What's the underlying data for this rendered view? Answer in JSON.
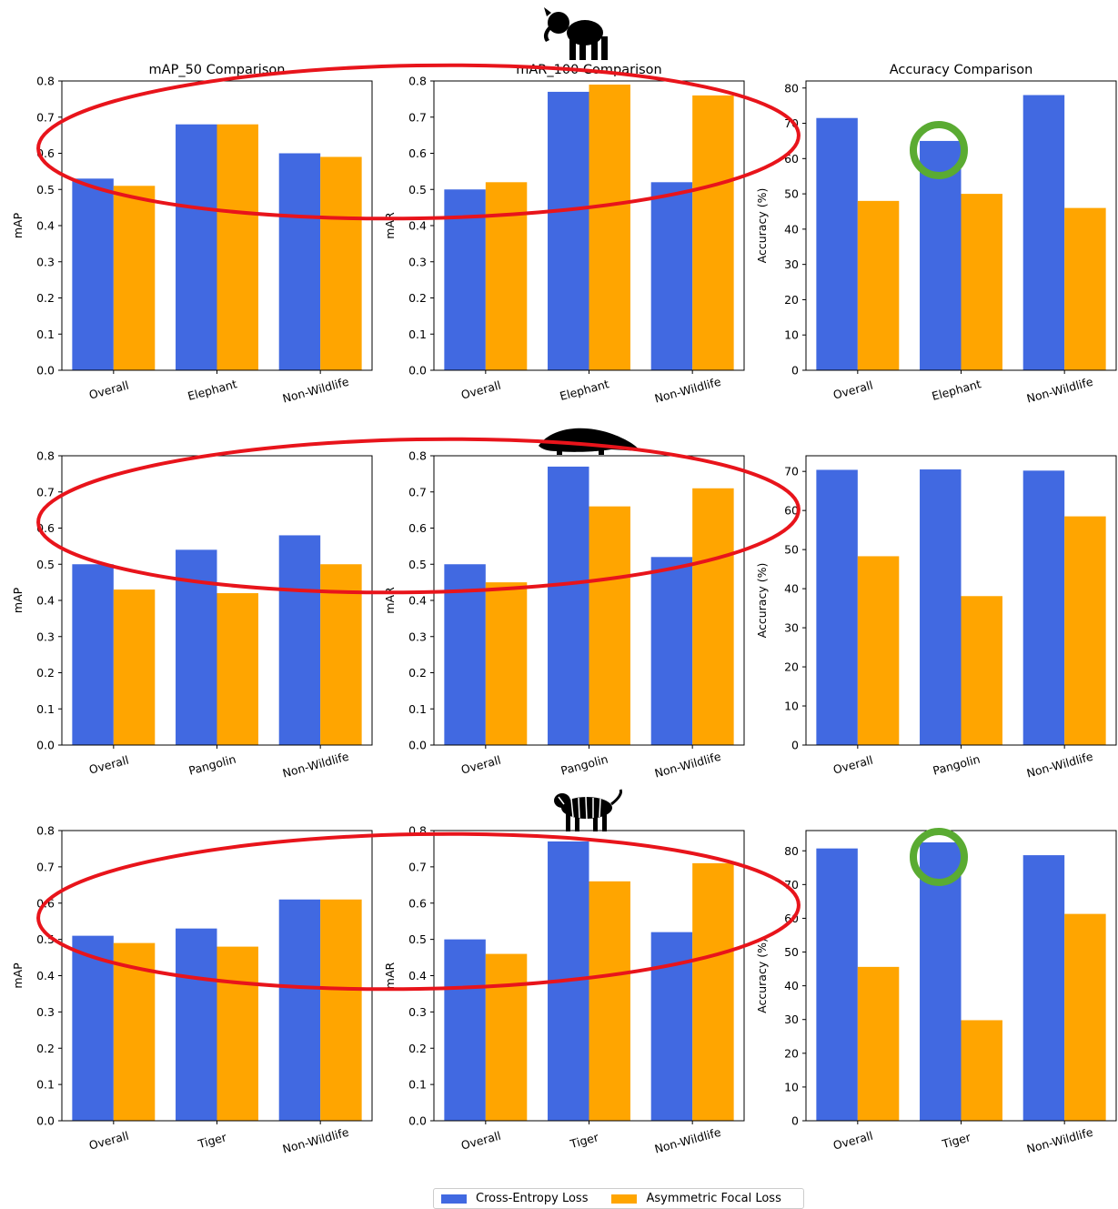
{
  "colors": {
    "series_a": "#4169e1",
    "series_b": "#ffa500",
    "highlight_ellipse": "#e8141b",
    "highlight_circle": "#5aab32"
  },
  "legend": [
    {
      "name": "Cross-Entropy Loss",
      "color": "#4169e1"
    },
    {
      "name": "Asymmetric Focal Loss",
      "color": "#ffa500"
    }
  ],
  "row_icons": [
    "elephant-silhouette-icon",
    "pangolin-silhouette-icon",
    "tiger-icon"
  ],
  "chart_data": [
    {
      "type": "bar",
      "title": "mAP_50 Comparison",
      "xlabel": "",
      "ylabel": "mAP",
      "ylim": [
        0,
        0.8
      ],
      "yticks": [
        "0.0",
        "0.1",
        "0.2",
        "0.3",
        "0.4",
        "0.5",
        "0.6",
        "0.7",
        "0.8"
      ],
      "categories": [
        "Overall",
        "Elephant",
        "Non-Wildlife"
      ],
      "series": [
        {
          "name": "Cross-Entropy Loss",
          "values": [
            0.53,
            0.68,
            0.6
          ]
        },
        {
          "name": "Asymmetric Focal Loss",
          "values": [
            0.51,
            0.68,
            0.59
          ]
        }
      ]
    },
    {
      "type": "bar",
      "title": "mAR_100 Comparison",
      "xlabel": "",
      "ylabel": "mAR",
      "ylim": [
        0,
        0.8
      ],
      "yticks": [
        "0.0",
        "0.1",
        "0.2",
        "0.3",
        "0.4",
        "0.5",
        "0.6",
        "0.7",
        "0.8"
      ],
      "categories": [
        "Overall",
        "Elephant",
        "Non-Wildlife"
      ],
      "series": [
        {
          "name": "Cross-Entropy Loss",
          "values": [
            0.5,
            0.77,
            0.52
          ]
        },
        {
          "name": "Asymmetric Focal Loss",
          "values": [
            0.52,
            0.79,
            0.76
          ]
        }
      ]
    },
    {
      "type": "bar",
      "title": "Accuracy Comparison",
      "xlabel": "",
      "ylabel": "Accuracy (%)",
      "ylim": [
        0,
        82
      ],
      "yticks": [
        "0",
        "10",
        "20",
        "30",
        "40",
        "50",
        "60",
        "70",
        "80"
      ],
      "categories": [
        "Overall",
        "Elephant",
        "Non-Wildlife"
      ],
      "series": [
        {
          "name": "Cross-Entropy Loss",
          "values": [
            71.5,
            65,
            78
          ]
        },
        {
          "name": "Asymmetric Focal Loss",
          "values": [
            48,
            50,
            46
          ]
        }
      ]
    },
    {
      "type": "bar",
      "title": "",
      "xlabel": "",
      "ylabel": "mAP",
      "ylim": [
        0,
        0.8
      ],
      "yticks": [
        "0.0",
        "0.1",
        "0.2",
        "0.3",
        "0.4",
        "0.5",
        "0.6",
        "0.7",
        "0.8"
      ],
      "categories": [
        "Overall",
        "Pangolin",
        "Non-Wildlife"
      ],
      "series": [
        {
          "name": "Cross-Entropy Loss",
          "values": [
            0.5,
            0.54,
            0.58
          ]
        },
        {
          "name": "Asymmetric Focal Loss",
          "values": [
            0.43,
            0.42,
            0.5
          ]
        }
      ]
    },
    {
      "type": "bar",
      "title": "",
      "xlabel": "",
      "ylabel": "mAR",
      "ylim": [
        0,
        0.8
      ],
      "yticks": [
        "0.0",
        "0.1",
        "0.2",
        "0.3",
        "0.4",
        "0.5",
        "0.6",
        "0.7",
        "0.8"
      ],
      "categories": [
        "Overall",
        "Pangolin",
        "Non-Wildlife"
      ],
      "series": [
        {
          "name": "Cross-Entropy Loss",
          "values": [
            0.5,
            0.77,
            0.52
          ]
        },
        {
          "name": "Asymmetric Focal Loss",
          "values": [
            0.45,
            0.66,
            0.71
          ]
        }
      ]
    },
    {
      "type": "bar",
      "title": "",
      "xlabel": "",
      "ylabel": "Accuracy (%)",
      "ylim": [
        0,
        74
      ],
      "yticks": [
        "0",
        "10",
        "20",
        "30",
        "40",
        "50",
        "60",
        "70"
      ],
      "categories": [
        "Overall",
        "Pangolin",
        "Non-Wildlife"
      ],
      "series": [
        {
          "name": "Cross-Entropy Loss",
          "values": [
            70.4,
            70.5,
            70.2
          ]
        },
        {
          "name": "Asymmetric Focal Loss",
          "values": [
            48.3,
            38.1,
            58.5
          ]
        }
      ]
    },
    {
      "type": "bar",
      "title": "",
      "xlabel": "",
      "ylabel": "mAP",
      "ylim": [
        0,
        0.8
      ],
      "yticks": [
        "0.0",
        "0.1",
        "0.2",
        "0.3",
        "0.4",
        "0.5",
        "0.6",
        "0.7",
        "0.8"
      ],
      "categories": [
        "Overall",
        "Tiger",
        "Non-Wildlife"
      ],
      "series": [
        {
          "name": "Cross-Entropy Loss",
          "values": [
            0.51,
            0.53,
            0.61
          ]
        },
        {
          "name": "Asymmetric Focal Loss",
          "values": [
            0.49,
            0.48,
            0.61
          ]
        }
      ]
    },
    {
      "type": "bar",
      "title": "",
      "xlabel": "",
      "ylabel": "mAR",
      "ylim": [
        0,
        0.8
      ],
      "yticks": [
        "0.0",
        "0.1",
        "0.2",
        "0.3",
        "0.4",
        "0.5",
        "0.6",
        "0.7",
        "0.8"
      ],
      "categories": [
        "Overall",
        "Tiger",
        "Non-Wildlife"
      ],
      "series": [
        {
          "name": "Cross-Entropy Loss",
          "values": [
            0.5,
            0.77,
            0.52
          ]
        },
        {
          "name": "Asymmetric Focal Loss",
          "values": [
            0.46,
            0.66,
            0.71
          ]
        }
      ]
    },
    {
      "type": "bar",
      "title": "",
      "xlabel": "",
      "ylabel": "Accuracy (%)",
      "ylim": [
        0,
        86
      ],
      "yticks": [
        "0",
        "10",
        "20",
        "30",
        "40",
        "50",
        "60",
        "70",
        "80"
      ],
      "categories": [
        "Overall",
        "Tiger",
        "Non-Wildlife"
      ],
      "series": [
        {
          "name": "Cross-Entropy Loss",
          "values": [
            80.7,
            82.5,
            78.7
          ]
        },
        {
          "name": "Asymmetric Focal Loss",
          "values": [
            45.6,
            29.8,
            61.3
          ]
        }
      ]
    }
  ]
}
